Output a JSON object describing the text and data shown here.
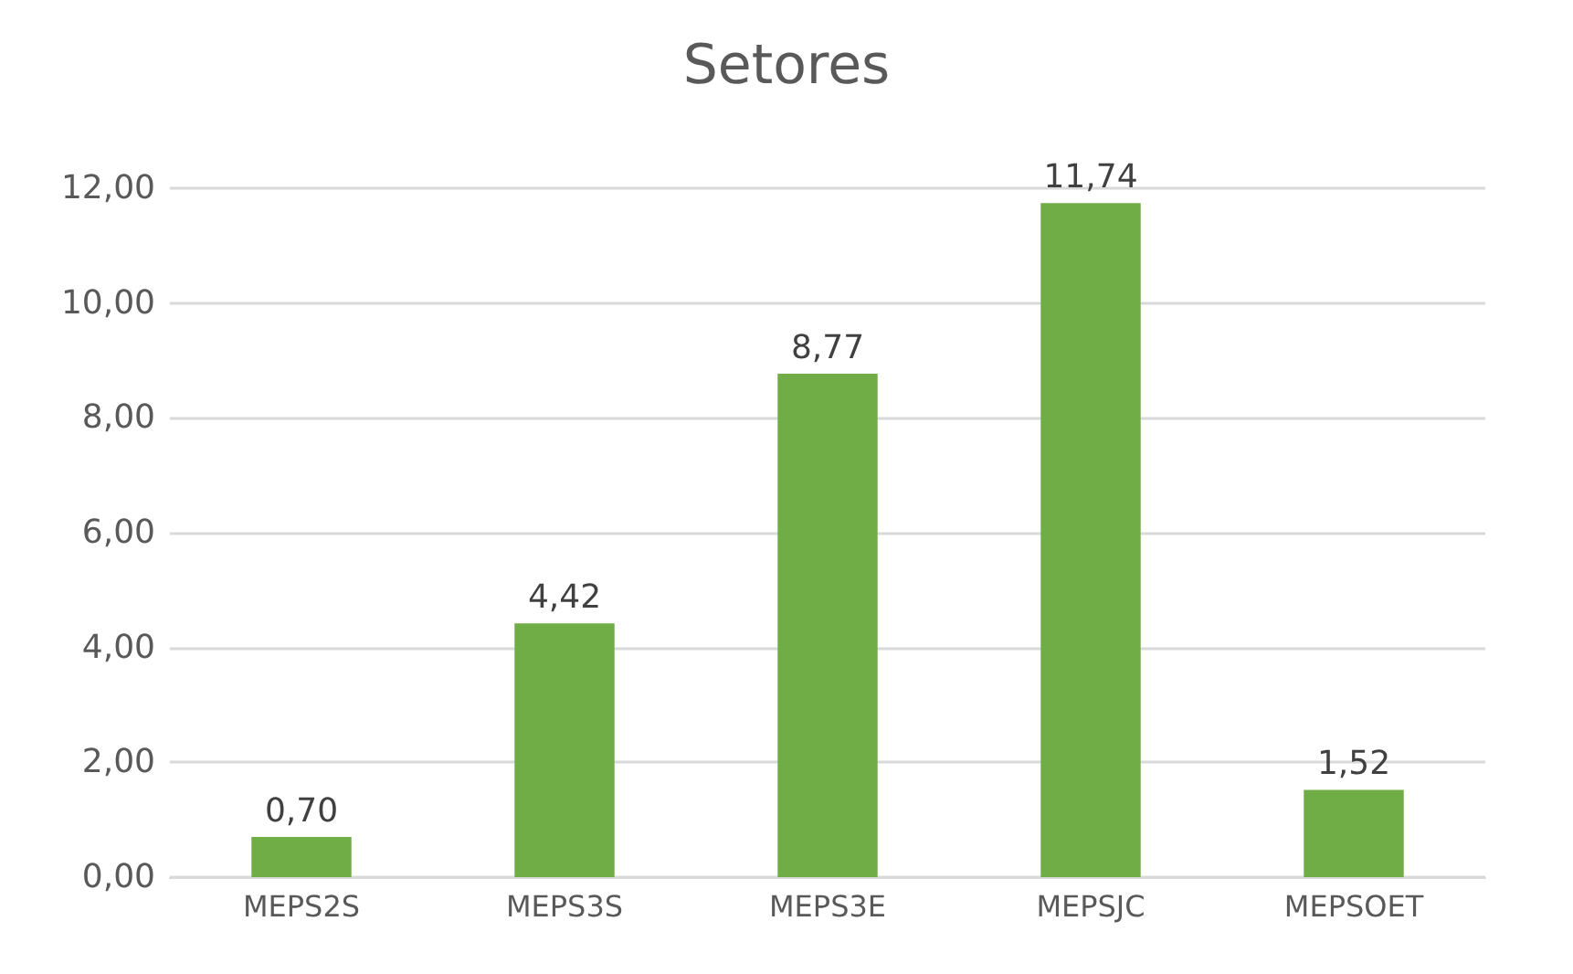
{
  "chart_data": {
    "type": "bar",
    "title": "Setores",
    "categories": [
      "MEPS2S",
      "MEPS3S",
      "MEPS3E",
      "MEPSJC",
      "MEPSOET"
    ],
    "values": [
      0.7,
      4.42,
      8.77,
      11.74,
      1.52
    ],
    "value_labels": [
      "0,70",
      "4,42",
      "8,77",
      "11,74",
      "1,52"
    ],
    "color": "#70ad47",
    "ylim": [
      0,
      12
    ],
    "yticks": [
      {
        "value": 0,
        "label": "0,00"
      },
      {
        "value": 2,
        "label": "2,00"
      },
      {
        "value": 4,
        "label": "4,00"
      },
      {
        "value": 6,
        "label": "6,00"
      },
      {
        "value": 8,
        "label": "8,00"
      },
      {
        "value": 10,
        "label": "10,00"
      },
      {
        "value": 12,
        "label": "12,00"
      }
    ],
    "grid": "y"
  }
}
